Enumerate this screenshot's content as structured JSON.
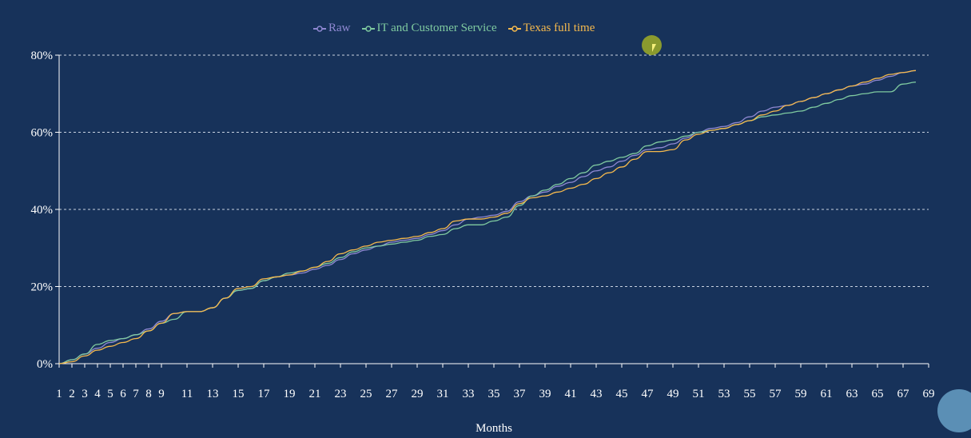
{
  "chart_data": {
    "type": "line",
    "title": "",
    "xlabel": "Months",
    "ylabel": "",
    "xlim": [
      1,
      69
    ],
    "ylim": [
      0,
      80
    ],
    "grid": "horizontal-dashed",
    "legend_placement": "top-center",
    "x_ticks": [
      "1",
      "2",
      "3",
      "4",
      "5",
      "6",
      "7",
      "8",
      "9",
      "11",
      "13",
      "15",
      "17",
      "19",
      "21",
      "23",
      "25",
      "27",
      "29",
      "31",
      "33",
      "35",
      "37",
      "39",
      "41",
      "43",
      "45",
      "47",
      "49",
      "51",
      "53",
      "55",
      "57",
      "59",
      "61",
      "63",
      "65",
      "67",
      "69"
    ],
    "y_ticks": [
      "0%",
      "20%",
      "40%",
      "60%",
      "80%"
    ],
    "y_tick_values": [
      0,
      20,
      40,
      60,
      80
    ],
    "x": [
      1,
      2,
      3,
      4,
      5,
      6,
      7,
      8,
      9,
      10,
      11,
      12,
      13,
      14,
      15,
      16,
      17,
      18,
      19,
      20,
      21,
      22,
      23,
      24,
      25,
      26,
      27,
      28,
      29,
      30,
      31,
      32,
      33,
      34,
      35,
      36,
      37,
      38,
      39,
      40,
      41,
      42,
      43,
      44,
      45,
      46,
      47,
      48,
      49,
      50,
      51,
      52,
      53,
      54,
      55,
      56,
      57,
      58,
      59,
      60,
      61,
      62,
      63,
      64,
      65,
      66,
      67,
      68
    ],
    "series": [
      {
        "name": "Raw",
        "color": "#8f88d2",
        "values": [
          0,
          1,
          2.5,
          4,
          5.5,
          6.5,
          7.5,
          9,
          11,
          13,
          13.5,
          13.5,
          14.5,
          17,
          19,
          19.5,
          21.5,
          22.5,
          23,
          23.5,
          24.5,
          25.5,
          27,
          28.5,
          29.5,
          30.5,
          31.5,
          32,
          32.5,
          33.5,
          34.5,
          36,
          37.5,
          38,
          38.5,
          39.5,
          42,
          43.5,
          44.5,
          46,
          47,
          48.5,
          50,
          51,
          52.5,
          54,
          55.5,
          56,
          57,
          58.5,
          60,
          61,
          61.5,
          62.5,
          64,
          65.5,
          66.5,
          67,
          68,
          69,
          70,
          71,
          72,
          72.5,
          73.5,
          74.5,
          75.5,
          76
        ]
      },
      {
        "name": "IT and Customer Service",
        "color": "#7fcaa0",
        "values": [
          0,
          1,
          2.5,
          5,
          6,
          6.5,
          7.5,
          8.5,
          10.5,
          11.5,
          13.5,
          13.5,
          14.5,
          17,
          19,
          19.5,
          21.5,
          22.5,
          23.5,
          24,
          25,
          26,
          27.5,
          29,
          30,
          30.5,
          31,
          31.5,
          32,
          33,
          33.5,
          35,
          36,
          36,
          37,
          38,
          41,
          43.5,
          45,
          46.5,
          48,
          49.5,
          51.5,
          52.5,
          53.5,
          54.5,
          56.5,
          57.5,
          58,
          59,
          60,
          60.5,
          61,
          62,
          63,
          64,
          64.5,
          65,
          65.5,
          66.5,
          67.5,
          68.5,
          69.5,
          70,
          70.5,
          70.5,
          72.5,
          73
        ]
      },
      {
        "name": "Texas full time",
        "color": "#f5b94d",
        "values": [
          0,
          0.5,
          2,
          3.5,
          4.5,
          5.5,
          6.5,
          8.5,
          10.5,
          13,
          13.5,
          13.5,
          14.5,
          17,
          19.5,
          20,
          22,
          22.5,
          23,
          24,
          25,
          26.5,
          28.5,
          29.5,
          30.5,
          31.5,
          32,
          32.5,
          33,
          34,
          35,
          37,
          37.5,
          37.5,
          38,
          39,
          41.5,
          43,
          43.5,
          44.5,
          45.5,
          46.5,
          48,
          49.5,
          51,
          53,
          55,
          55,
          55.5,
          58,
          59.5,
          60.5,
          61,
          62,
          63,
          64.5,
          65.5,
          67,
          68,
          69,
          70,
          71,
          72,
          73,
          74,
          75,
          75.5,
          76
        ]
      }
    ]
  }
}
